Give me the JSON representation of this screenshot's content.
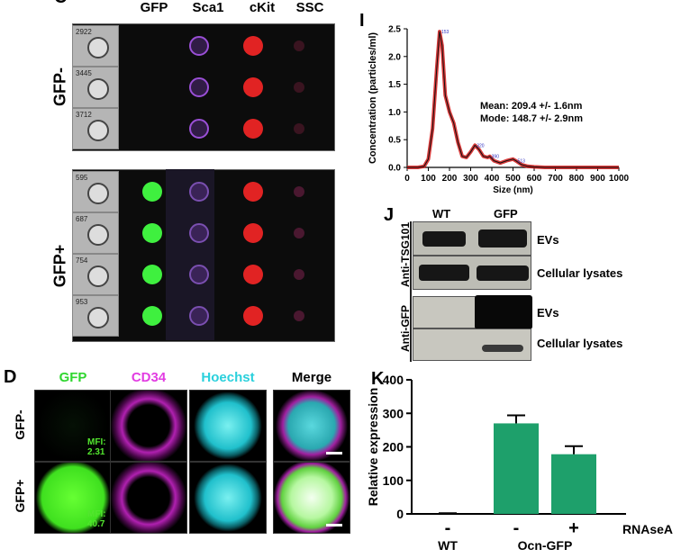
{
  "panelC": {
    "columns": [
      "GFP",
      "Sca1",
      "cKit",
      "SSC"
    ],
    "groups": [
      {
        "label": "GFP-",
        "cells": [
          "2922",
          "3445",
          "3712"
        ]
      },
      {
        "label": "GFP+",
        "cells": [
          "595",
          "687",
          "754",
          "953"
        ]
      }
    ]
  },
  "panelD": {
    "letter": "D",
    "columns": [
      "GFP",
      "CD34",
      "Hoechst",
      "Merge"
    ],
    "column_colors": [
      "#2fd62f",
      "#e23ce2",
      "#2ad0dc",
      "#000000"
    ],
    "rows": [
      "GFP-",
      "GFP+"
    ],
    "mfi": [
      "MFI: 2.31",
      "MFI: 40.7"
    ]
  },
  "panelI": {
    "letter": "I",
    "ylabel": "Concentration (particles/ml)",
    "xlabel": "Size (nm)",
    "mean_text": "Mean: 209.4 +/- 1.6nm",
    "mode_text": "Mode: 148.7 +/- 2.9nm",
    "peak_labels": [
      "153",
      "320",
      "390",
      "513"
    ]
  },
  "panelJ": {
    "letter": "J",
    "lanes": [
      "WT",
      "GFP"
    ],
    "groups": [
      {
        "antibody": "Anti-TSG101",
        "blots": [
          "EVs",
          "Cellular lysates"
        ]
      },
      {
        "antibody": "Anti-GFP",
        "blots": [
          "EVs",
          "Cellular lysates"
        ]
      }
    ]
  },
  "panelK": {
    "letter": "K",
    "rnase_signs": [
      "-",
      "-",
      "+"
    ],
    "rnase_label": "RNAseA",
    "group_labels": [
      "WT",
      "Ocn-GFP"
    ]
  },
  "chart_data": [
    {
      "type": "line",
      "title": "",
      "xlabel": "Size (nm)",
      "ylabel": "Concentration (particles/ml)",
      "xlim": [
        0,
        1000
      ],
      "ylim": [
        0,
        2.5
      ],
      "xticks": [
        0,
        100,
        200,
        300,
        400,
        500,
        600,
        700,
        800,
        900,
        1000
      ],
      "yticks": [
        0.0,
        0.5,
        1.0,
        1.5,
        2.0,
        2.5
      ],
      "x": [
        0,
        50,
        80,
        100,
        120,
        140,
        153,
        165,
        180,
        200,
        220,
        240,
        260,
        280,
        300,
        320,
        340,
        360,
        380,
        390,
        410,
        440,
        470,
        500,
        513,
        540,
        570,
        600,
        650,
        700,
        800,
        900,
        1000
      ],
      "y": [
        0,
        0,
        0.02,
        0.15,
        0.7,
        1.8,
        2.45,
        2.2,
        1.3,
        1.0,
        0.8,
        0.45,
        0.2,
        0.18,
        0.28,
        0.4,
        0.32,
        0.2,
        0.18,
        0.2,
        0.12,
        0.08,
        0.12,
        0.15,
        0.12,
        0.05,
        0.02,
        0.01,
        0,
        0,
        0,
        0,
        0
      ],
      "grid": false,
      "color": "#d01616",
      "annotations": [
        "Mean: 209.4 +/- 1.6nm",
        "Mode: 148.7 +/- 2.9nm"
      ]
    },
    {
      "type": "bar",
      "title": "",
      "ylabel": "Relative expression",
      "categories": [
        "WT",
        "Ocn-GFP",
        "Ocn-GFP"
      ],
      "rnase": [
        "-",
        "-",
        "+"
      ],
      "values": [
        2,
        270,
        178
      ],
      "errors": [
        0,
        24,
        24
      ],
      "ylim": [
        0,
        400
      ],
      "yticks": [
        0,
        100,
        200,
        300,
        400
      ],
      "color": "#1ea06b",
      "grid": false
    }
  ]
}
